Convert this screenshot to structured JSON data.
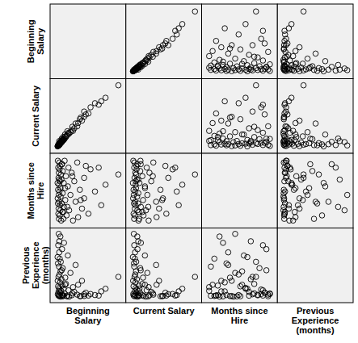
{
  "chart_data": {
    "type": "scatter_matrix",
    "marker": "circle-open",
    "color": "#000000",
    "tick_labels": false,
    "dimensions": [
      {
        "label": "Beginning Salary",
        "lim": [
          5000,
          84000
        ],
        "values": [
          79980,
          65000,
          60000,
          52650,
          47500,
          45000,
          42000,
          40000,
          39990,
          37500,
          35000,
          33000,
          31980,
          30000,
          28500,
          27000,
          25500,
          24000,
          22500,
          21750,
          21000,
          19500,
          18750,
          18000,
          17250,
          16500,
          16200,
          15750,
          15000,
          14850,
          14550,
          14250,
          13950,
          13500,
          13200,
          12750,
          12600,
          12450,
          12300,
          12000,
          11850,
          11700,
          11550,
          11400,
          11250,
          11100,
          10950,
          10800,
          10650,
          10500,
          10350,
          10200,
          10050,
          9900,
          9750,
          9600,
          9450,
          9300,
          9150,
          9000,
          26250,
          36000,
          57000,
          15600,
          13800,
          17700,
          20400,
          11000
        ]
      },
      {
        "label": "Current Salary",
        "lim": [
          10000,
          140000
        ],
        "values": [
          135000,
          110625,
          103750,
          100000,
          92000,
          80000,
          78125,
          73500,
          83750,
          66000,
          68750,
          61250,
          55000,
          60375,
          51000,
          46000,
          47550,
          43500,
          40800,
          42300,
          38850,
          36150,
          33900,
          35250,
          30300,
          31050,
          28350,
          27900,
          29850,
          26250,
          27600,
          24600,
          25950,
          23400,
          26400,
          22050,
          23850,
          21750,
          24150,
          22500,
          20700,
          21300,
          19650,
          22950,
          20250,
          18750,
          19950,
          21000,
          18150,
          20400,
          17550,
          19350,
          18900,
          17100,
          18300,
          16950,
          17850,
          16500,
          16200,
          15750,
          54000,
          72000,
          97000,
          34000,
          30750,
          39000,
          45250,
          26000
        ]
      },
      {
        "label": "Months since Hire",
        "lim": [
          61,
          100
        ],
        "values": [
          90,
          84,
          72,
          80,
          93,
          67,
          95,
          76,
          88,
          70,
          81,
          65,
          97,
          74,
          86,
          63,
          91,
          78,
          69,
          94,
          83,
          66,
          89,
          75,
          98,
          71,
          85,
          64,
          92,
          79,
          68,
          96,
          73,
          87,
          63,
          90,
          77,
          82,
          69,
          95,
          72,
          86,
          66,
          93,
          80,
          97,
          74,
          84,
          64,
          91,
          78,
          70,
          88,
          67,
          94,
          81,
          73,
          98,
          76,
          85,
          89,
          75,
          94,
          68,
          96,
          82,
          71,
          87
        ]
      },
      {
        "label": "Previous Experience (months)",
        "lim": [
          -15,
          490
        ],
        "values": [
          150,
          60,
          40,
          12,
          20,
          8,
          30,
          5,
          18,
          120,
          3,
          90,
          15,
          240,
          36,
          72,
          10,
          180,
          0,
          48,
          312,
          5,
          96,
          144,
          24,
          408,
          60,
          6,
          216,
          2,
          84,
          360,
          12,
          132,
          44,
          264,
          0,
          192,
          456,
          30,
          108,
          7,
          288,
          54,
          168,
          3,
          336,
          66,
          228,
          14,
          476,
          40,
          150,
          9,
          390,
          78,
          252,
          20,
          120,
          300,
          25,
          4,
          8,
          11,
          200,
          90,
          2,
          420
        ]
      }
    ]
  }
}
